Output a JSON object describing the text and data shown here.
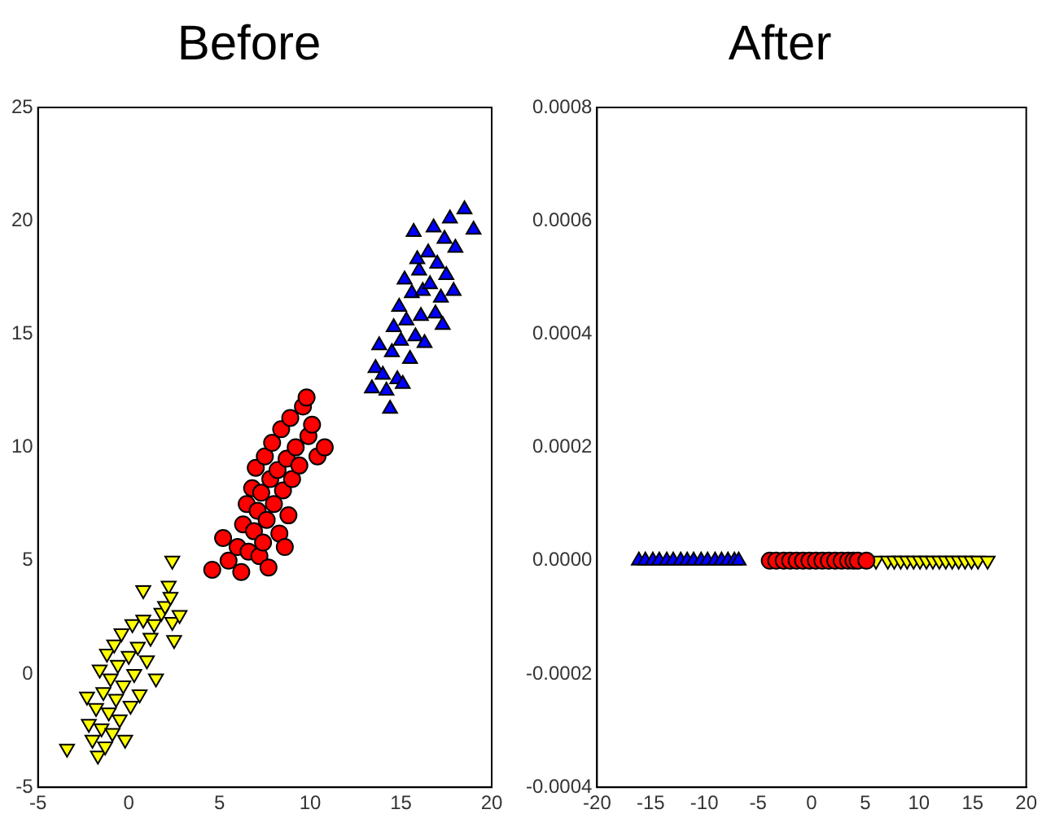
{
  "chart_data": [
    {
      "type": "scatter",
      "title": "Before",
      "xlim": [
        -5,
        20
      ],
      "xticks": [
        -5,
        0,
        5,
        10,
        15,
        20
      ],
      "ylim": [
        -5,
        25
      ],
      "yticks": [
        -5,
        0,
        5,
        10,
        15,
        20,
        25
      ],
      "grid": false,
      "legend": false,
      "series": [
        {
          "color": "#0000ff",
          "marker": "triangle",
          "x": [
            13.4,
            13.6,
            13.8,
            14.0,
            14.2,
            14.4,
            14.5,
            14.6,
            14.8,
            14.9,
            15.0,
            15.1,
            15.2,
            15.3,
            15.5,
            15.6,
            15.7,
            15.8,
            16.0,
            16.1,
            16.2,
            16.3,
            16.5,
            16.6,
            16.8,
            16.9,
            17.0,
            17.2,
            17.4,
            17.5,
            17.7,
            17.9,
            18.0,
            18.5,
            19.0,
            17.3,
            15.9
          ],
          "values": [
            12.6,
            13.5,
            14.5,
            13.2,
            12.5,
            11.7,
            14.2,
            15.3,
            13.0,
            16.2,
            14.7,
            12.8,
            17.4,
            15.6,
            13.9,
            16.8,
            19.5,
            14.9,
            17.8,
            15.8,
            16.9,
            14.6,
            18.6,
            17.2,
            19.7,
            15.9,
            18.1,
            16.6,
            19.2,
            17.6,
            20.1,
            16.9,
            18.8,
            20.5,
            19.6,
            15.4,
            18.3
          ]
        },
        {
          "color": "#ff0000",
          "marker": "circle",
          "x": [
            4.6,
            5.2,
            5.5,
            6.0,
            6.2,
            6.3,
            6.5,
            6.6,
            6.8,
            6.9,
            7.0,
            7.1,
            7.2,
            7.3,
            7.5,
            7.6,
            7.7,
            7.8,
            7.9,
            8.0,
            8.2,
            8.3,
            8.4,
            8.5,
            8.7,
            8.8,
            8.9,
            9.0,
            9.2,
            9.4,
            9.6,
            9.8,
            9.9,
            10.1,
            10.4,
            10.8,
            8.6,
            7.4
          ],
          "values": [
            4.6,
            6.0,
            5.0,
            5.6,
            4.5,
            6.6,
            7.5,
            5.4,
            8.2,
            6.3,
            9.1,
            7.2,
            5.2,
            8.0,
            9.6,
            6.8,
            4.7,
            8.6,
            10.2,
            7.5,
            9.0,
            6.2,
            10.8,
            8.1,
            9.5,
            7.0,
            11.3,
            8.6,
            10.0,
            9.2,
            11.8,
            12.2,
            10.5,
            11.0,
            9.6,
            10.0,
            5.6,
            5.8
          ]
        },
        {
          "color": "#ffff00",
          "marker": "triangle_down",
          "x": [
            -3.4,
            -2.3,
            -2.2,
            -2.0,
            -1.8,
            -1.7,
            -1.6,
            -1.5,
            -1.4,
            -1.3,
            -1.2,
            -1.1,
            -1.0,
            -0.9,
            -0.8,
            -0.7,
            -0.6,
            -0.5,
            -0.4,
            -0.3,
            -0.2,
            0.0,
            0.1,
            0.2,
            0.3,
            0.5,
            0.6,
            0.8,
            0.8,
            1.0,
            1.2,
            1.4,
            1.5,
            1.8,
            2.0,
            2.2,
            2.4,
            2.4,
            2.5,
            2.8,
            2.3
          ],
          "values": [
            -3.3,
            -1.0,
            -2.2,
            -2.9,
            -1.5,
            -3.6,
            0.2,
            -2.4,
            -0.8,
            -3.2,
            0.9,
            -1.7,
            -0.2,
            -2.6,
            1.3,
            -1.1,
            0.4,
            -2.0,
            1.8,
            -0.5,
            -2.9,
            0.8,
            -1.4,
            2.2,
            0.0,
            1.2,
            -0.9,
            2.4,
            3.7,
            0.6,
            1.6,
            2.2,
            -0.2,
            2.7,
            3.0,
            3.9,
            5.0,
            2.3,
            1.5,
            2.6,
            3.4
          ]
        }
      ]
    },
    {
      "type": "scatter",
      "title": "After",
      "xlim": [
        -20,
        20
      ],
      "xticks": [
        -20,
        -15,
        -10,
        -5,
        0,
        5,
        10,
        15,
        20
      ],
      "ylim": [
        -0.0004,
        0.0008
      ],
      "yticks": [
        {
          "value": -0.0004,
          "label": "-0.0004"
        },
        {
          "value": -0.0002,
          "label": "-0.0002"
        },
        {
          "value": 0,
          "label": "0.0000"
        },
        {
          "value": 0.0002,
          "label": "0.0002"
        },
        {
          "value": 0.0004,
          "label": "0.0004"
        },
        {
          "value": 0.0006,
          "label": "0.0006"
        },
        {
          "value": 0.0008,
          "label": "0.0008"
        }
      ],
      "grid": false,
      "legend": false,
      "series": [
        {
          "color": "#0000ff",
          "marker": "triangle",
          "x": [
            -16.1,
            -15.5,
            -14.8,
            -14.2,
            -13.5,
            -12.9,
            -12.2,
            -11.6,
            -11.0,
            -10.3,
            -9.7,
            -9.0,
            -8.4,
            -7.8,
            -7.2,
            -6.8
          ],
          "values": [
            0,
            0,
            0,
            0,
            0,
            0,
            0,
            0,
            0,
            0,
            0,
            0,
            0,
            0,
            0,
            0
          ]
        },
        {
          "color": "#ff0000",
          "marker": "circle",
          "x": [
            -3.9,
            -3.3,
            -2.6,
            -2.0,
            -1.4,
            -0.8,
            -0.2,
            0.4,
            1.0,
            1.6,
            2.2,
            2.8,
            3.4,
            3.9,
            4.3,
            5.1
          ],
          "values": [
            0,
            0,
            0,
            0,
            0,
            0,
            0,
            0,
            0,
            0,
            0,
            0,
            0,
            0,
            0,
            0
          ]
        },
        {
          "color": "#ffff00",
          "marker": "triangle_down",
          "x": [
            6.0,
            7.1,
            7.7,
            8.3,
            8.9,
            9.5,
            10.1,
            10.7,
            11.3,
            11.9,
            12.5,
            13.1,
            13.7,
            14.3,
            14.9,
            15.5,
            16.4
          ],
          "values": [
            0,
            0,
            0,
            0,
            0,
            0,
            0,
            0,
            0,
            0,
            0,
            0,
            0,
            0,
            0,
            0,
            0
          ]
        }
      ]
    }
  ]
}
